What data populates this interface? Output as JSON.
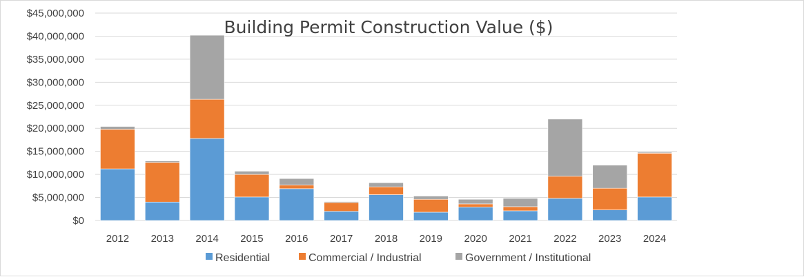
{
  "chart_data": {
    "type": "bar",
    "stacked": true,
    "title": "Building Permit Construction Value ($)",
    "xlabel": "",
    "ylabel": "",
    "ylim": [
      0,
      45000000
    ],
    "y_ticks": [
      0,
      5000000,
      10000000,
      15000000,
      20000000,
      25000000,
      30000000,
      35000000,
      40000000,
      45000000
    ],
    "y_tick_labels": [
      "$0",
      "$5,000,000",
      "$10,000,000",
      "$15,000,000",
      "$20,000,000",
      "$25,000,000",
      "$30,000,000",
      "$35,000,000",
      "$40,000,000",
      "$45,000,000"
    ],
    "grid": true,
    "legend_position": "bottom",
    "categories": [
      "2012",
      "2013",
      "2014",
      "2015",
      "2016",
      "2017",
      "2018",
      "2019",
      "2020",
      "2021",
      "2022",
      "2023",
      "2024"
    ],
    "series": [
      {
        "name": "Residential",
        "color": "#5b9bd5",
        "values": [
          11200000,
          4000000,
          17800000,
          5100000,
          6900000,
          2000000,
          5600000,
          1800000,
          2900000,
          2100000,
          4800000,
          2300000,
          5100000
        ]
      },
      {
        "name": "Commercial / Industrial",
        "color": "#ed7d31",
        "values": [
          8600000,
          8600000,
          8500000,
          4900000,
          800000,
          1900000,
          1700000,
          2800000,
          700000,
          900000,
          4800000,
          4700000,
          9500000
        ]
      },
      {
        "name": "Government / Institutional",
        "color": "#a5a5a5",
        "values": [
          600000,
          300000,
          13900000,
          700000,
          1400000,
          200000,
          900000,
          700000,
          1000000,
          1800000,
          12400000,
          5000000,
          200000
        ]
      }
    ]
  }
}
